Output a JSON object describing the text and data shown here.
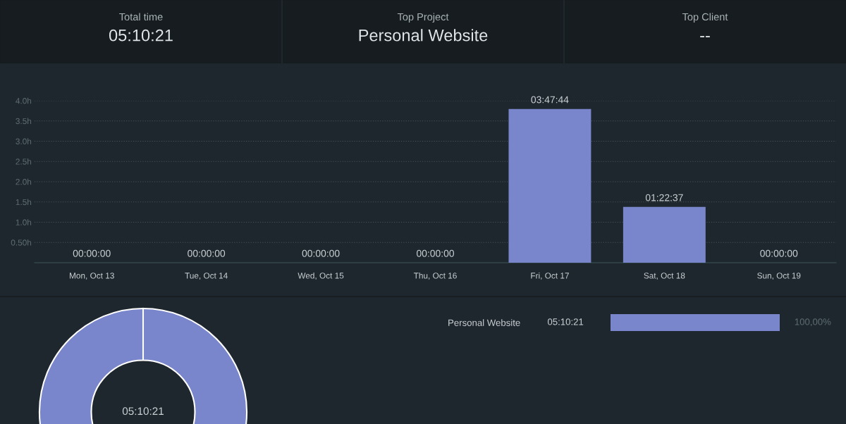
{
  "chart_data": [
    {
      "type": "other",
      "annotations": [
        "Total time",
        "05:10:21",
        "Top Project",
        "Personal Website",
        "Top Client",
        "--"
      ]
    },
    {
      "type": "bar",
      "categories": [
        "Mon, Oct 13",
        "Tue, Oct 14",
        "Wed, Oct 15",
        "Thu, Oct 16",
        "Fri, Oct 17",
        "Sat, Oct 18",
        "Sun, Oct 19"
      ],
      "values": [
        0,
        0,
        0,
        0,
        3.7956,
        1.3769,
        0
      ],
      "value_labels": [
        "00:00:00",
        "00:00:00",
        "00:00:00",
        "00:00:00",
        "03:47:44",
        "01:22:37",
        "00:00:00"
      ],
      "color": "#7986cb",
      "ylim": [
        0,
        4.0
      ],
      "yticks": [
        {
          "value": 0.5,
          "label": "0.50h"
        },
        {
          "value": 1.0,
          "label": "1.0h"
        },
        {
          "value": 1.5,
          "label": "1.5h"
        },
        {
          "value": 2.0,
          "label": "2.0h"
        },
        {
          "value": 2.5,
          "label": "2.5h"
        },
        {
          "value": 3.0,
          "label": "3.0h"
        },
        {
          "value": 3.5,
          "label": "3.5h"
        },
        {
          "value": 4.0,
          "label": "4.0h"
        }
      ],
      "grid": "y"
    },
    {
      "type": "donut",
      "categories": [
        null
      ],
      "values": [
        100
      ],
      "colors": [
        "#7986cb"
      ],
      "annotations": [
        "05:10:21"
      ]
    },
    {
      "type": "bar",
      "orientation": "horizontal",
      "categories": [
        "Personal Website"
      ],
      "values": [
        100
      ],
      "color": "#7986cb",
      "value_labels": [
        "100,00%"
      ],
      "annotations": [
        "05:10:21"
      ]
    }
  ]
}
